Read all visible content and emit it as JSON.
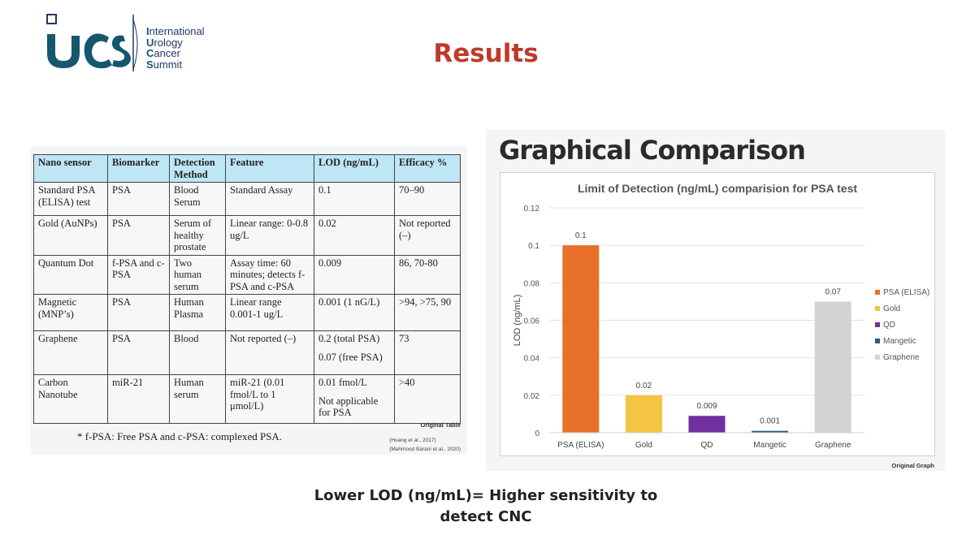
{
  "logo": {
    "line1_initial": "I",
    "line1_rest": "nternational",
    "line2_initial": "U",
    "line2_rest": "rology",
    "line3_initial": "C",
    "line3_rest": "ancer",
    "line4_initial": "S",
    "line4_rest": "ummit"
  },
  "title": "Results",
  "table": {
    "headers": [
      "Nano sensor",
      "Biomarker",
      "Detection Method",
      "Feature",
      "LOD (ng/mL)",
      "Efficacy %"
    ],
    "rows": [
      [
        "Standard PSA (ELISA) test",
        "PSA",
        "Blood Serum",
        "Standard Assay",
        "0.1",
        "70–90"
      ],
      [
        "Gold (AuNPs)",
        "PSA",
        "Serum of healthy prostate",
        "Linear range: 0-0.8 ug/L",
        "0.02",
        "Not reported (–)"
      ],
      [
        "Quantum Dot",
        "f-PSA and c-PSA",
        "Two human serum",
        "Assay time: 60 minutes; detects f-PSA and c-PSA",
        "0.009",
        "86, 70-80"
      ],
      [
        "Magnetic (MNP’s)",
        "PSA",
        "Human Plasma",
        "Linear range 0.001-1 ug/L",
        "0.001 (1 nG/L)",
        ">94, >75, 90"
      ],
      [
        "Graphene",
        "PSA",
        "Blood",
        "Not reported (–)",
        "0.2 (total PSA)",
        "73"
      ],
      [
        "Carbon Nanotube",
        "miR-21",
        "Human serum",
        "miR-21 (0.01 fmol/L to 1 μmol/L)",
        "0.01 fmol/L",
        ">40"
      ]
    ],
    "graphene_lod_extra": "0.07 (free PSA)",
    "cnt_lod_extra": "Not applicable for PSA",
    "footnote": "* f-PSA: Free PSA and c-PSA: complexed PSA.",
    "original_label": "Original Table",
    "ref1": "(Huang et al., 2017)",
    "ref2": "(Mahmood Barani et al., 2020)"
  },
  "graph_heading": "Graphical Comparison",
  "original_graph_label": "Original Graph",
  "chart_data": {
    "type": "bar",
    "title": "Limit of Detection  (ng/mL) comparision for PSA test",
    "ylabel": "LOD (ng/mL)",
    "xlabel": "",
    "categories": [
      "PSA (ELISA)",
      "Gold",
      "QD",
      "Mangetic",
      "Graphene"
    ],
    "values": [
      0.1,
      0.02,
      0.009,
      0.001,
      0.07
    ],
    "data_labels": [
      "0.1",
      "0.02",
      "0.009",
      "0.001",
      "0.07"
    ],
    "colors": [
      "#e8702a",
      "#f4c542",
      "#7030a0",
      "#1f5f8b",
      "#d3d3d3"
    ],
    "ylim": [
      0,
      0.12
    ],
    "yticks": [
      0,
      0.02,
      0.04,
      0.06,
      0.08,
      0.1,
      0.12
    ],
    "ytick_labels": [
      "0",
      "0.02",
      "0.04",
      "0.06",
      "0.08",
      "0.1",
      "0.12"
    ],
    "legend": [
      "PSA (ELISA)",
      "Gold",
      "QD",
      "Mangetic",
      "Graphene"
    ],
    "legend_position": "right",
    "grid": true
  },
  "tagline_line1": "Lower LOD (ng/mL)= Higher sensitivity to",
  "tagline_line2": "detect CNC"
}
